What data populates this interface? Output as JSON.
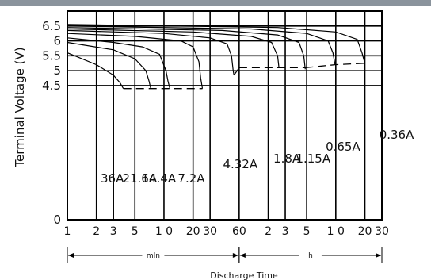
{
  "chart_data": {
    "type": "line",
    "title": "",
    "ylabel": "Terminal Voltage (V)",
    "xlabel": "Discharge Time",
    "ylim": [
      0,
      7.0
    ],
    "y_ticks": [
      {
        "value": 0,
        "label": "0"
      },
      {
        "value": 4.5,
        "label": "4.5"
      },
      {
        "value": 5.0,
        "label": "5"
      },
      {
        "value": 5.5,
        "label": "5.5"
      },
      {
        "value": 6.0,
        "label": "6"
      },
      {
        "value": 6.5,
        "label": "6.5"
      }
    ],
    "x_scale": "log",
    "x_unit": "minutes",
    "xlim_minutes": [
      1,
      1800
    ],
    "x_ticks": [
      {
        "minutes": 1,
        "label": "1"
      },
      {
        "minutes": 2,
        "label": "2"
      },
      {
        "minutes": 3,
        "label": "3"
      },
      {
        "minutes": 5,
        "label": "5"
      },
      {
        "minutes": 10,
        "label": "1 0"
      },
      {
        "minutes": 20,
        "label": "20"
      },
      {
        "minutes": 30,
        "label": "30"
      },
      {
        "minutes": 60,
        "label": "60"
      },
      {
        "minutes": 120,
        "label": "2"
      },
      {
        "minutes": 180,
        "label": "3"
      },
      {
        "minutes": 300,
        "label": "5"
      },
      {
        "minutes": 600,
        "label": "1 0"
      },
      {
        "minutes": 1200,
        "label": "20"
      },
      {
        "minutes": 1800,
        "label": "30"
      }
    ],
    "ranges": [
      {
        "label": "mln",
        "from": 1,
        "to": 60
      },
      {
        "label": "h",
        "from": 60,
        "to": 1800
      }
    ],
    "series": [
      {
        "name": "36A",
        "points": [
          [
            1,
            5.6
          ],
          [
            2,
            5.2
          ],
          [
            3,
            4.85
          ],
          [
            3.5,
            4.6
          ],
          [
            3.8,
            4.4
          ]
        ]
      },
      {
        "name": "21.6A",
        "points": [
          [
            1,
            5.95
          ],
          [
            3,
            5.7
          ],
          [
            5,
            5.4
          ],
          [
            6.5,
            5.0
          ],
          [
            7,
            4.65
          ],
          [
            7.3,
            4.4
          ]
        ]
      },
      {
        "name": "14.4A",
        "points": [
          [
            1,
            6.1
          ],
          [
            3,
            5.95
          ],
          [
            6,
            5.8
          ],
          [
            9,
            5.55
          ],
          [
            10.5,
            5.0
          ],
          [
            11,
            4.65
          ],
          [
            11.5,
            4.4
          ]
        ]
      },
      {
        "name": "7.2A",
        "points": [
          [
            1,
            6.25
          ],
          [
            5,
            6.15
          ],
          [
            15,
            6.0
          ],
          [
            20,
            5.8
          ],
          [
            23,
            5.3
          ],
          [
            24,
            4.75
          ],
          [
            25,
            4.4
          ]
        ]
      },
      {
        "name": "4.32A",
        "points": [
          [
            1,
            6.35
          ],
          [
            10,
            6.25
          ],
          [
            30,
            6.1
          ],
          [
            45,
            5.9
          ],
          [
            50,
            5.5
          ],
          [
            52,
            5.0
          ],
          [
            53,
            4.85
          ]
        ]
      },
      {
        "name": "1.8A",
        "points": [
          [
            1,
            6.4
          ],
          [
            20,
            6.3
          ],
          [
            80,
            6.15
          ],
          [
            130,
            5.95
          ],
          [
            150,
            5.5
          ],
          [
            155,
            5.1
          ]
        ]
      },
      {
        "name": "1.15A",
        "points": [
          [
            1,
            6.45
          ],
          [
            40,
            6.35
          ],
          [
            150,
            6.2
          ],
          [
            250,
            5.95
          ],
          [
            280,
            5.5
          ],
          [
            290,
            5.05
          ]
        ]
      },
      {
        "name": "0.65A",
        "points": [
          [
            1,
            6.5
          ],
          [
            80,
            6.4
          ],
          [
            300,
            6.25
          ],
          [
            500,
            6.0
          ],
          [
            560,
            5.6
          ],
          [
            590,
            5.2
          ]
        ]
      },
      {
        "name": "0.36A",
        "points": [
          [
            1,
            6.55
          ],
          [
            150,
            6.45
          ],
          [
            600,
            6.3
          ],
          [
            1000,
            6.05
          ],
          [
            1120,
            5.6
          ],
          [
            1200,
            5.25
          ]
        ]
      }
    ],
    "cutoff_voltage": [
      {
        "points": [
          [
            3.8,
            4.4
          ],
          [
            25,
            4.4
          ]
        ]
      },
      {
        "points": [
          [
            53,
            4.85
          ],
          [
            60,
            5.1
          ]
        ]
      },
      {
        "points": [
          [
            60,
            5.1
          ],
          [
            290,
            5.1
          ]
        ]
      },
      {
        "points": [
          [
            290,
            5.1
          ],
          [
            590,
            5.2
          ],
          [
            1200,
            5.25
          ]
        ]
      }
    ],
    "grid": true
  }
}
